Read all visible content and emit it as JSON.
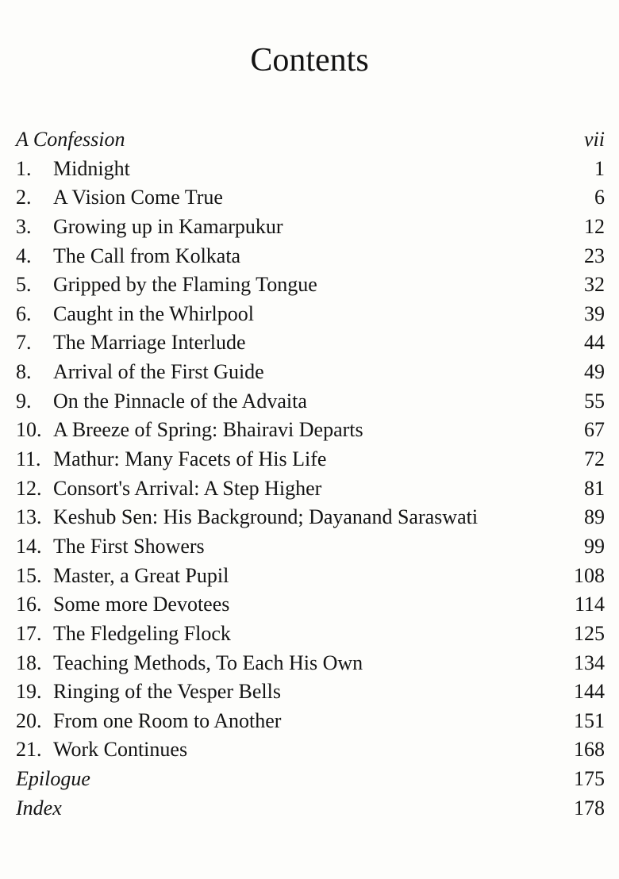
{
  "title": "Contents",
  "entries": [
    {
      "num": "",
      "label": "A Confession",
      "page": "vii",
      "italic": true
    },
    {
      "num": "1.",
      "label": "Midnight",
      "page": "1"
    },
    {
      "num": "2.",
      "label": "A Vision Come True",
      "page": "6"
    },
    {
      "num": "3.",
      "label": "Growing up in Kamarpukur",
      "page": "12"
    },
    {
      "num": "4.",
      "label": "The Call from Kolkata",
      "page": "23"
    },
    {
      "num": "5.",
      "label": "Gripped by the Flaming Tongue",
      "page": "32"
    },
    {
      "num": "6.",
      "label": "Caught in the Whirlpool",
      "page": "39"
    },
    {
      "num": "7.",
      "label": "The Marriage Interlude",
      "page": "44"
    },
    {
      "num": "8.",
      "label": "Arrival of the First Guide",
      "page": "49"
    },
    {
      "num": "9.",
      "label": "On the Pinnacle of the Advaita",
      "page": "55"
    },
    {
      "num": "10.",
      "label": "A Breeze of Spring: Bhairavi Departs",
      "page": "67"
    },
    {
      "num": "11.",
      "label": "Mathur: Many Facets of His Life",
      "page": "72"
    },
    {
      "num": "12.",
      "label": "Consort's Arrival: A Step Higher",
      "page": "81"
    },
    {
      "num": "13.",
      "label": "Keshub Sen: His Background; Dayanand Saraswati",
      "page": "89"
    },
    {
      "num": "14.",
      "label": "The First Showers",
      "page": "99"
    },
    {
      "num": "15.",
      "label": "Master, a Great Pupil",
      "page": "108"
    },
    {
      "num": "16.",
      "label": "Some more Devotees",
      "page": "114"
    },
    {
      "num": "17.",
      "label": "The Fledgeling Flock",
      "page": "125"
    },
    {
      "num": "18.",
      "label": "Teaching Methods, To Each His Own",
      "page": "134"
    },
    {
      "num": "19.",
      "label": "Ringing of the Vesper Bells",
      "page": "144"
    },
    {
      "num": "20.",
      "label": "From one Room to Another",
      "page": "151"
    },
    {
      "num": "21.",
      "label": "Work Continues",
      "page": "168"
    },
    {
      "num": "",
      "label": "Epilogue",
      "page": "175",
      "italic": true
    },
    {
      "num": "",
      "label": "Index",
      "page": "178",
      "italic": true
    }
  ]
}
